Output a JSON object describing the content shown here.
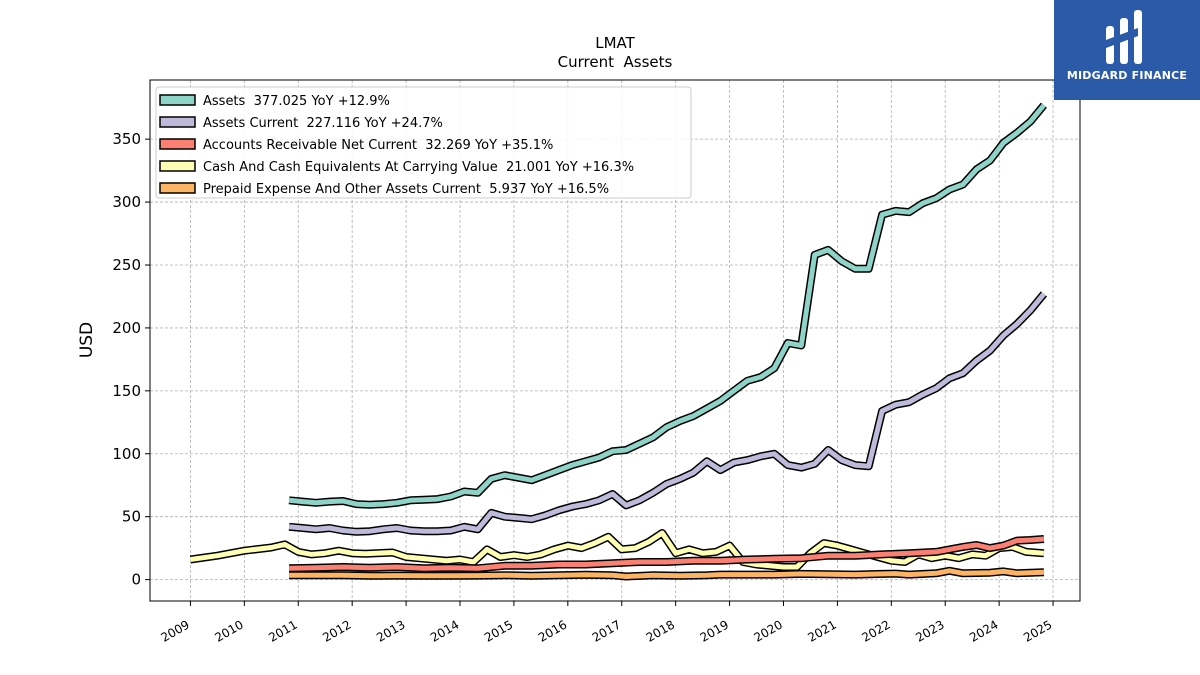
{
  "chart_data": {
    "type": "line",
    "title": "LMAT",
    "subtitle": "Current  Assets",
    "ylabel": "USD",
    "xlabel": "",
    "xlim": [
      2008.25,
      2025.5
    ],
    "ylim": [
      -17,
      397
    ],
    "yticks": [
      0,
      50,
      100,
      150,
      200,
      250,
      300,
      350
    ],
    "xticks": [
      "2009",
      "2010",
      "2011",
      "2012",
      "2013",
      "2014",
      "2015",
      "2016",
      "2017",
      "2018",
      "2019",
      "2020",
      "2021",
      "2022",
      "2023",
      "2024",
      "2025"
    ],
    "grid": true,
    "legend_position": "top-left",
    "series": [
      {
        "name": "Assets  377.025 YoY +12.9%",
        "color": "#8dd3c7",
        "points": [
          [
            2010.83,
            63
          ],
          [
            2011.08,
            62
          ],
          [
            2011.33,
            61
          ],
          [
            2011.58,
            62
          ],
          [
            2011.83,
            62.5
          ],
          [
            2012.08,
            60
          ],
          [
            2012.33,
            59.5
          ],
          [
            2012.58,
            60
          ],
          [
            2012.83,
            61
          ],
          [
            2013.08,
            63
          ],
          [
            2013.33,
            63.5
          ],
          [
            2013.58,
            64
          ],
          [
            2013.83,
            66
          ],
          [
            2014.08,
            70
          ],
          [
            2014.33,
            69
          ],
          [
            2014.58,
            80
          ],
          [
            2014.83,
            83
          ],
          [
            2015.08,
            81
          ],
          [
            2015.33,
            79
          ],
          [
            2015.58,
            83
          ],
          [
            2015.83,
            87
          ],
          [
            2016.08,
            91
          ],
          [
            2016.33,
            94
          ],
          [
            2016.58,
            97
          ],
          [
            2016.83,
            102
          ],
          [
            2017.08,
            103
          ],
          [
            2017.33,
            108
          ],
          [
            2017.58,
            113
          ],
          [
            2017.83,
            121
          ],
          [
            2018.08,
            126
          ],
          [
            2018.33,
            130
          ],
          [
            2018.58,
            136
          ],
          [
            2018.83,
            142
          ],
          [
            2019.08,
            150
          ],
          [
            2019.33,
            158
          ],
          [
            2019.58,
            161
          ],
          [
            2019.83,
            168
          ],
          [
            2020.08,
            188
          ],
          [
            2020.33,
            186
          ],
          [
            2020.58,
            258
          ],
          [
            2020.83,
            262
          ],
          [
            2021.08,
            253
          ],
          [
            2021.33,
            247
          ],
          [
            2021.58,
            247
          ],
          [
            2021.83,
            290
          ],
          [
            2022.08,
            293
          ],
          [
            2022.33,
            292
          ],
          [
            2022.58,
            299
          ],
          [
            2022.83,
            303
          ],
          [
            2023.08,
            310
          ],
          [
            2023.33,
            314
          ],
          [
            2023.58,
            326
          ],
          [
            2023.83,
            333
          ],
          [
            2024.08,
            347
          ],
          [
            2024.33,
            355
          ],
          [
            2024.58,
            364
          ],
          [
            2024.83,
            377
          ]
        ]
      },
      {
        "name": "Assets Current  227.116 YoY +24.7%",
        "color": "#bebada",
        "points": [
          [
            2010.83,
            42
          ],
          [
            2011.08,
            41
          ],
          [
            2011.33,
            40
          ],
          [
            2011.58,
            41
          ],
          [
            2011.83,
            39
          ],
          [
            2012.08,
            38
          ],
          [
            2012.33,
            38.5
          ],
          [
            2012.58,
            40
          ],
          [
            2012.83,
            41
          ],
          [
            2013.08,
            39
          ],
          [
            2013.33,
            38.5
          ],
          [
            2013.58,
            38.5
          ],
          [
            2013.83,
            39
          ],
          [
            2014.08,
            42
          ],
          [
            2014.33,
            40
          ],
          [
            2014.58,
            53
          ],
          [
            2014.83,
            50
          ],
          [
            2015.08,
            49
          ],
          [
            2015.33,
            48
          ],
          [
            2015.58,
            51
          ],
          [
            2015.83,
            55
          ],
          [
            2016.08,
            58
          ],
          [
            2016.33,
            60
          ],
          [
            2016.58,
            63
          ],
          [
            2016.83,
            68
          ],
          [
            2017.08,
            59
          ],
          [
            2017.33,
            63
          ],
          [
            2017.58,
            69
          ],
          [
            2017.83,
            76
          ],
          [
            2018.08,
            80
          ],
          [
            2018.33,
            85
          ],
          [
            2018.58,
            94
          ],
          [
            2018.83,
            87
          ],
          [
            2019.08,
            93
          ],
          [
            2019.33,
            95
          ],
          [
            2019.58,
            98
          ],
          [
            2019.83,
            100
          ],
          [
            2020.08,
            91
          ],
          [
            2020.33,
            89
          ],
          [
            2020.58,
            92
          ],
          [
            2020.83,
            103
          ],
          [
            2021.08,
            95
          ],
          [
            2021.33,
            91
          ],
          [
            2021.58,
            90
          ],
          [
            2021.83,
            134
          ],
          [
            2022.08,
            139
          ],
          [
            2022.33,
            141
          ],
          [
            2022.58,
            147
          ],
          [
            2022.83,
            152
          ],
          [
            2023.08,
            160
          ],
          [
            2023.33,
            164
          ],
          [
            2023.58,
            174
          ],
          [
            2023.83,
            182
          ],
          [
            2024.08,
            194
          ],
          [
            2024.33,
            203
          ],
          [
            2024.58,
            214
          ],
          [
            2024.83,
            227
          ]
        ]
      },
      {
        "name": "Accounts Receivable Net Current  32.269 YoY +35.1%",
        "color": "#fb8072",
        "points": [
          [
            2010.83,
            9
          ],
          [
            2011.33,
            9.5
          ],
          [
            2011.83,
            10
          ],
          [
            2012.33,
            9.5
          ],
          [
            2012.83,
            10
          ],
          [
            2013.33,
            9
          ],
          [
            2013.83,
            9.5
          ],
          [
            2014.33,
            9
          ],
          [
            2014.83,
            11
          ],
          [
            2015.33,
            11
          ],
          [
            2015.83,
            12
          ],
          [
            2016.33,
            12
          ],
          [
            2016.83,
            13
          ],
          [
            2017.33,
            14
          ],
          [
            2017.83,
            14
          ],
          [
            2018.33,
            15
          ],
          [
            2018.83,
            15
          ],
          [
            2019.33,
            16
          ],
          [
            2019.83,
            16.5
          ],
          [
            2020.33,
            17
          ],
          [
            2020.83,
            19
          ],
          [
            2021.33,
            19
          ],
          [
            2021.83,
            20
          ],
          [
            2022.33,
            21
          ],
          [
            2022.83,
            22
          ],
          [
            2023.33,
            26
          ],
          [
            2023.58,
            27.5
          ],
          [
            2023.83,
            25
          ],
          [
            2024.08,
            27
          ],
          [
            2024.33,
            31
          ],
          [
            2024.58,
            31.5
          ],
          [
            2024.83,
            32.3
          ]
        ]
      },
      {
        "name": "Cash And Cash Equivalents At Carrying Value  21.001 YoY +16.3%",
        "color": "#ffffb3",
        "points": [
          [
            2009.0,
            16
          ],
          [
            2009.5,
            19
          ],
          [
            2010.0,
            23
          ],
          [
            2010.5,
            25.5
          ],
          [
            2010.75,
            28
          ],
          [
            2011.0,
            22
          ],
          [
            2011.25,
            20
          ],
          [
            2011.5,
            21
          ],
          [
            2011.75,
            23
          ],
          [
            2012.0,
            21
          ],
          [
            2012.25,
            20.5
          ],
          [
            2012.75,
            21.5
          ],
          [
            2013.0,
            18
          ],
          [
            2013.5,
            16
          ],
          [
            2013.75,
            15
          ],
          [
            2014.0,
            16
          ],
          [
            2014.25,
            14
          ],
          [
            2014.5,
            24
          ],
          [
            2014.75,
            18
          ],
          [
            2015.0,
            19.5
          ],
          [
            2015.25,
            18
          ],
          [
            2015.5,
            20
          ],
          [
            2015.75,
            24
          ],
          [
            2016.0,
            27
          ],
          [
            2016.25,
            25
          ],
          [
            2016.5,
            29
          ],
          [
            2016.75,
            34
          ],
          [
            2017.0,
            24
          ],
          [
            2017.25,
            25
          ],
          [
            2017.5,
            30
          ],
          [
            2017.75,
            37
          ],
          [
            2018.0,
            21
          ],
          [
            2018.25,
            24
          ],
          [
            2018.5,
            21
          ],
          [
            2018.75,
            22
          ],
          [
            2019.0,
            27
          ],
          [
            2019.25,
            14
          ],
          [
            2019.5,
            12
          ],
          [
            2019.75,
            11
          ],
          [
            2020.0,
            10
          ],
          [
            2020.25,
            10
          ],
          [
            2020.5,
            21
          ],
          [
            2020.75,
            29
          ],
          [
            2021.0,
            27
          ],
          [
            2021.25,
            24
          ],
          [
            2021.5,
            21
          ],
          [
            2021.75,
            18
          ],
          [
            2022.0,
            15
          ],
          [
            2022.25,
            14
          ],
          [
            2022.5,
            20
          ],
          [
            2022.75,
            17
          ],
          [
            2023.0,
            19
          ],
          [
            2023.25,
            17
          ],
          [
            2023.5,
            20
          ],
          [
            2023.75,
            19
          ],
          [
            2024.0,
            25
          ],
          [
            2024.25,
            26
          ],
          [
            2024.5,
            22
          ],
          [
            2024.83,
            21
          ]
        ]
      },
      {
        "name": "Prepaid Expense And Other Assets Current  5.937 YoY +16.5%",
        "color": "#fdb462",
        "points": [
          [
            2010.83,
            3.5
          ],
          [
            2011.33,
            3.5
          ],
          [
            2011.83,
            3.5
          ],
          [
            2012.33,
            3
          ],
          [
            2012.83,
            3.2
          ],
          [
            2013.33,
            3
          ],
          [
            2013.83,
            3
          ],
          [
            2014.33,
            3.2
          ],
          [
            2014.83,
            3.5
          ],
          [
            2015.33,
            3
          ],
          [
            2015.83,
            3.5
          ],
          [
            2016.33,
            3.8
          ],
          [
            2016.83,
            3.5
          ],
          [
            2017.08,
            2.5
          ],
          [
            2017.58,
            3.5
          ],
          [
            2018.08,
            3
          ],
          [
            2018.58,
            3.5
          ],
          [
            2018.83,
            4
          ],
          [
            2019.33,
            4
          ],
          [
            2019.83,
            4
          ],
          [
            2020.33,
            4.5
          ],
          [
            2020.83,
            4.2
          ],
          [
            2021.33,
            4
          ],
          [
            2021.83,
            4.5
          ],
          [
            2022.08,
            4.8
          ],
          [
            2022.33,
            4
          ],
          [
            2022.83,
            5
          ],
          [
            2023.08,
            7
          ],
          [
            2023.33,
            5
          ],
          [
            2023.83,
            5.5
          ],
          [
            2024.08,
            6.5
          ],
          [
            2024.33,
            5
          ],
          [
            2024.58,
            5.5
          ],
          [
            2024.83,
            5.9
          ]
        ]
      }
    ]
  },
  "brand": {
    "name": "MIDGARD FINANCE",
    "background": "#2b5aa8"
  }
}
